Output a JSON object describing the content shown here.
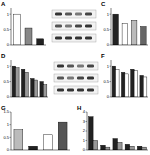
{
  "chart_data": [
    {
      "type": "bar",
      "title": "A",
      "categories": [
        null,
        null,
        null
      ],
      "values": [
        1.0,
        0.55,
        0.2
      ],
      "colors": [
        "#ffffff",
        "#888888",
        "#222222"
      ],
      "ylim": [
        0,
        1.2
      ],
      "yticks": [
        0,
        0.5,
        1
      ]
    },
    {
      "type": "bar",
      "title": "C",
      "categories": [
        null,
        null,
        null,
        null
      ],
      "values": [
        1.0,
        0.7,
        0.8,
        0.6
      ],
      "colors": [
        "#222222",
        "#ffffff",
        "#bbbbbb",
        "#666666"
      ],
      "ylim": [
        0,
        1.2
      ],
      "yticks": [
        0,
        0.5,
        1
      ]
    },
    {
      "type": "bar",
      "title": "D",
      "categories": [
        null,
        null,
        null,
        null
      ],
      "series": [
        {
          "color": "#222222",
          "values": [
            1.0,
            0.9,
            0.6,
            0.5
          ]
        },
        {
          "color": "#999999",
          "values": [
            0.95,
            0.8,
            0.55,
            0.4
          ]
        }
      ],
      "ylim": [
        0,
        1.2
      ],
      "yticks": [
        0,
        0.5,
        1
      ]
    },
    {
      "type": "bar",
      "title": "F",
      "categories": [
        null,
        null,
        null,
        null
      ],
      "series": [
        {
          "color": "#222222",
          "values": [
            1.0,
            0.8,
            0.9,
            0.7
          ]
        },
        {
          "color": "#ffffff",
          "values": [
            0.9,
            0.75,
            0.85,
            0.65
          ]
        }
      ],
      "ylim": [
        0,
        1.2
      ],
      "yticks": [
        0,
        0.5,
        1
      ]
    },
    {
      "type": "bar",
      "title": "G",
      "categories": [
        null,
        null,
        null,
        null
      ],
      "values": [
        0.8,
        0.15,
        0.6,
        1.1
      ],
      "colors": [
        "#bbbbbb",
        "#222222",
        "#ffffff",
        "#555555"
      ],
      "ylim": [
        0,
        1.5
      ],
      "yticks": [
        0,
        0.5,
        1,
        1.5
      ]
    },
    {
      "type": "bar",
      "title": "H",
      "categories": [
        null,
        null,
        null,
        null,
        null
      ],
      "series": [
        {
          "color": "#222222",
          "values": [
            3.5,
            0.5,
            1.2,
            0.6,
            0.4
          ]
        },
        {
          "color": "#999999",
          "values": [
            1.0,
            0.3,
            0.8,
            0.4,
            0.3
          ]
        }
      ],
      "ylim": [
        0,
        4
      ],
      "yticks": [
        0,
        1,
        2,
        3,
        4
      ]
    }
  ]
}
